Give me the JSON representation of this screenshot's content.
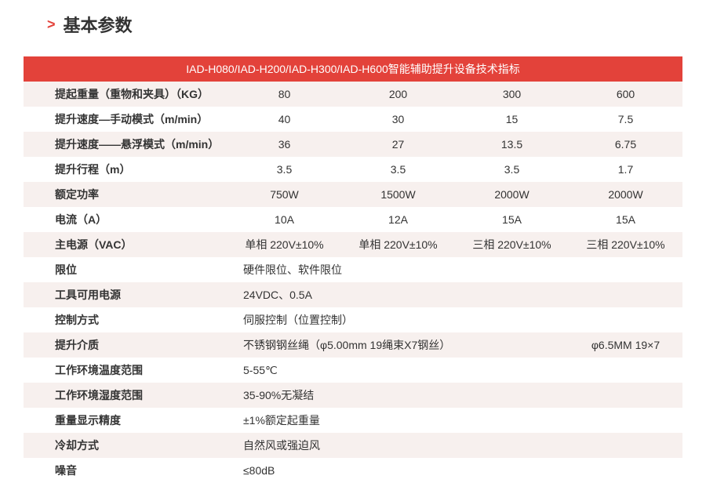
{
  "colors": {
    "accent": "#e3423a",
    "text": "#333333",
    "row_even_bg": "#f7f0ee",
    "row_odd_bg": "#ffffff"
  },
  "section_title_chevron": ">",
  "section_title": "基本参数",
  "table": {
    "header": "IAD-H080/IAD-H200/IAD-H300/IAD-H600智能辅助提升设备技术指标",
    "label_fontweight": "bold",
    "value_fontsize": 14,
    "rows4": [
      {
        "label": "提起重量（重物和夹具）（KG）",
        "vals": [
          "80",
          "200",
          "300",
          "600"
        ]
      },
      {
        "label": "提升速度—手动模式（m/min）",
        "vals": [
          "40",
          "30",
          "15",
          "7.5"
        ]
      },
      {
        "label": "提升速度——悬浮模式（m/min）",
        "vals": [
          "36",
          "27",
          "13.5",
          "6.75"
        ]
      },
      {
        "label": "提升行程（m）",
        "vals": [
          "3.5",
          "3.5",
          "3.5",
          "1.7"
        ]
      },
      {
        "label": "额定功率",
        "vals": [
          "750W",
          "1500W",
          "2000W",
          "2000W"
        ]
      },
      {
        "label": "电流（A）",
        "vals": [
          "10A",
          "12A",
          "15A",
          "15A"
        ]
      },
      {
        "label": "主电源（VAC）",
        "vals": [
          "单相 220V±10%",
          "单相 220V±10%",
          "三相 220V±10%",
          "三相 220V±10%"
        ]
      }
    ],
    "rows_span": [
      {
        "label": "限位",
        "full": "硬件限位、软件限位"
      },
      {
        "label": "工具可用电源",
        "full": "24VDC、0.5A"
      },
      {
        "label": "控制方式",
        "full": "伺服控制（位置控制）"
      }
    ],
    "row_medium": {
      "label": "提升介质",
      "col3": "不锈钢钢丝绳（φ5.00mm  19绳束X7钢丝）",
      "col1": "φ6.5MM 19×7"
    },
    "rows_span2": [
      {
        "label": "工作环境温度范围",
        "full": "5-55℃"
      },
      {
        "label": "工作环境湿度范围",
        "full": "35-90%无凝结"
      },
      {
        "label": "重量显示精度",
        "full": "±1%额定起重量"
      },
      {
        "label": "冷却方式",
        "full": "自然风或强迫风"
      },
      {
        "label": "噪音",
        "full": "≤80dB"
      }
    ]
  }
}
